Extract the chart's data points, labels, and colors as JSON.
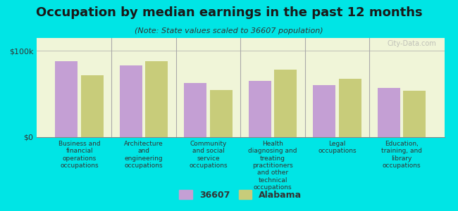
{
  "title": "Occupation by median earnings in the past 12 months",
  "subtitle": "(Note: State values scaled to 36607 population)",
  "background_color": "#00e5e5",
  "plot_bg_color": "#f0f5d8",
  "bar_color_36607": "#c49fd4",
  "bar_color_alabama": "#c8cc7a",
  "ymax": 100000,
  "yticks": [
    0,
    100000
  ],
  "ytick_labels": [
    "$0",
    "$100k"
  ],
  "categories": [
    "Business and\nfinancial\noperations\noccupations",
    "Architecture\nand\nengineering\noccupations",
    "Community\nand social\nservice\noccupations",
    "Health\ndiagnosing and\ntreating\npractitioners\nand other\ntechnical\noccupations",
    "Legal\noccupations",
    "Education,\ntraining, and\nlibrary\noccupations"
  ],
  "values_36607": [
    88000,
    83000,
    63000,
    65000,
    60000,
    57000
  ],
  "values_alabama": [
    72000,
    88000,
    55000,
    78000,
    68000,
    54000
  ],
  "legend_label_36607": "36607",
  "legend_label_alabama": "Alabama",
  "watermark": "City-Data.com"
}
